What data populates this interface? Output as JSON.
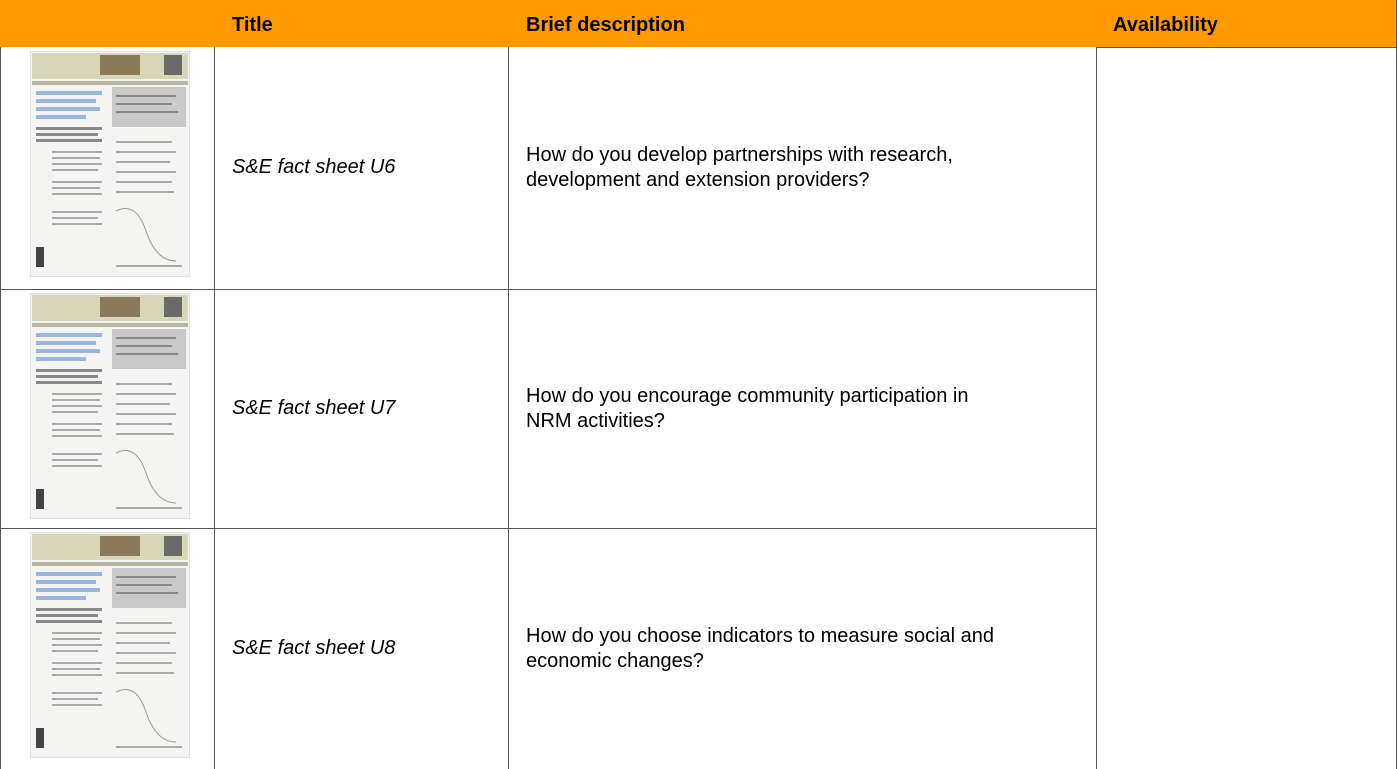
{
  "table": {
    "header": [
      "Title",
      "Brief description",
      "Availability"
    ],
    "rows": [
      {
        "title": "S&E fact sheet U6",
        "description": "How do you develop partnerships with research, development and extension providers?"
      },
      {
        "title": "S&E fact sheet U7",
        "description": "How do you encourage community participation in NRM activities?"
      },
      {
        "title": "S&E fact sheet U8",
        "description": "How do you choose indicators to measure social and economic changes?"
      }
    ]
  }
}
